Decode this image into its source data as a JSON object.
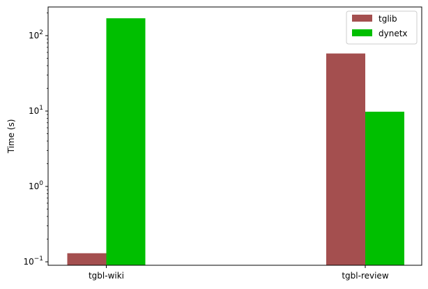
{
  "chart_data": {
    "type": "bar",
    "title": "",
    "xlabel": "",
    "ylabel": "Time (s)",
    "yscale": "log",
    "ylim": [
      0.09,
      240
    ],
    "yticks": [
      {
        "value": 0.1,
        "base": "10",
        "exp": "−1"
      },
      {
        "value": 1,
        "base": "10",
        "exp": "0"
      },
      {
        "value": 10,
        "base": "10",
        "exp": "1"
      },
      {
        "value": 100,
        "base": "10",
        "exp": "2"
      }
    ],
    "categories": [
      "tgbl-wiki",
      "tgbl-review"
    ],
    "series": [
      {
        "name": "tglib",
        "color": "#a44f4f",
        "values": [
          0.13,
          58
        ]
      },
      {
        "name": "dynetx",
        "color": "#00bf00",
        "values": [
          170,
          9.8
        ]
      }
    ],
    "legend_position": "top-right",
    "grid": false
  }
}
